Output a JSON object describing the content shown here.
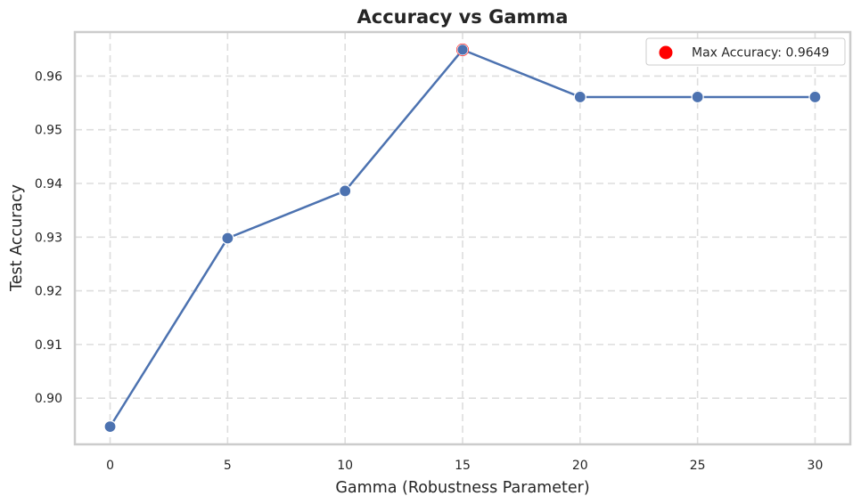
{
  "chart_data": {
    "type": "line",
    "title": "Accuracy vs Gamma",
    "xlabel": "Gamma (Robustness Parameter)",
    "ylabel": "Test Accuracy",
    "x": [
      0,
      5,
      10,
      15,
      20,
      25,
      30
    ],
    "series": [
      {
        "values": [
          0.8947,
          0.9298,
          0.9386,
          0.9649,
          0.9561,
          0.9561,
          0.9561
        ],
        "color": "#4c72b0"
      }
    ],
    "highlight": {
      "label": "Max Accuracy: 0.9649",
      "x": 15,
      "y": 0.9649,
      "color": "#ff0000"
    },
    "xticks": [
      "0",
      "5",
      "10",
      "15",
      "20",
      "25",
      "30"
    ],
    "yticks": [
      "0.90",
      "0.91",
      "0.92",
      "0.93",
      "0.94",
      "0.95",
      "0.96"
    ],
    "xlim": [
      -1.5,
      31.5
    ],
    "ylim": [
      0.8914,
      0.9682
    ],
    "grid": true,
    "legend_position": "top-right",
    "colors": {
      "line": "#4c72b0",
      "highlight": "#ff0000",
      "grid": "#dddddd",
      "spine": "#cccccc"
    }
  }
}
